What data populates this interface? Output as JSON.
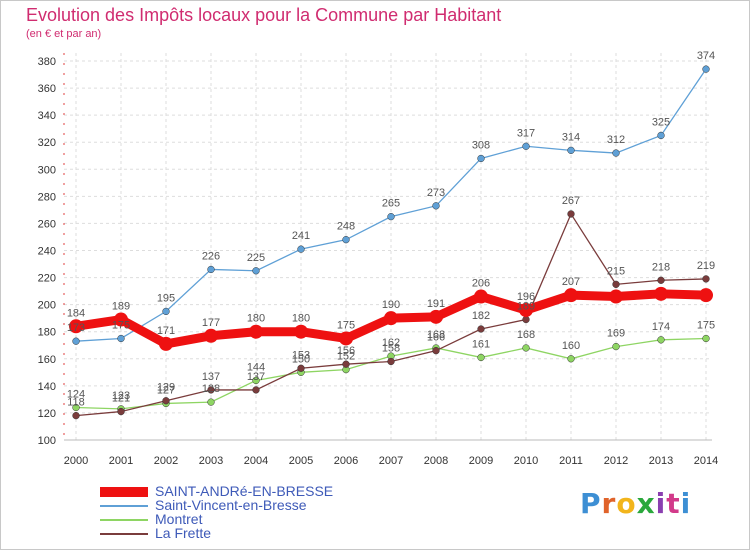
{
  "title": "Evolution des Impôts locaux pour la Commune par Habitant",
  "subtitle": "(en € et par an)",
  "logo_text": "Proxiti",
  "colors": {
    "title": "#d02c70",
    "legend_text": "#3e5ab8"
  },
  "chart_data": {
    "type": "line",
    "x": [
      "2000",
      "2001",
      "2002",
      "2003",
      "2004",
      "2005",
      "2006",
      "2007",
      "2008",
      "2009",
      "2010",
      "2011",
      "2012",
      "2013",
      "2014"
    ],
    "ylim": [
      100,
      380
    ],
    "yticks": [
      100,
      120,
      140,
      160,
      180,
      200,
      220,
      240,
      260,
      280,
      300,
      320,
      340,
      360,
      380
    ],
    "grid": true,
    "legend_position": "bottom-left",
    "series": [
      {
        "name": "SAINT-ANDRé-EN-BRESSE",
        "color": "#ee1111",
        "bold": true,
        "values": [
          184,
          189,
          171,
          177,
          180,
          180,
          175,
          190,
          191,
          206,
          196,
          207,
          206,
          208,
          207
        ],
        "labels": [
          "184",
          "189",
          "171",
          "177",
          "180",
          "180",
          "175",
          "190",
          "191",
          "206",
          "196",
          "207",
          "",
          "",
          ""
        ]
      },
      {
        "name": "Saint-Vincent-en-Bresse",
        "color": "#5fa0d6",
        "bold": false,
        "values": [
          173,
          175,
          195,
          226,
          225,
          241,
          248,
          265,
          273,
          308,
          317,
          314,
          312,
          325,
          374
        ],
        "labels": [
          "173",
          "175",
          "195",
          "226",
          "225",
          "241",
          "248",
          "265",
          "273",
          "308",
          "317",
          "314",
          "312",
          "325",
          "374"
        ]
      },
      {
        "name": "Montret",
        "color": "#8ed563",
        "bold": false,
        "values": [
          124,
          123,
          127,
          128,
          144,
          150,
          152,
          162,
          168,
          161,
          168,
          160,
          169,
          174,
          175
        ],
        "labels": [
          "124",
          "123",
          "127",
          "128",
          "144",
          "150",
          "152",
          "162",
          "168",
          "161",
          "168",
          "160",
          "169",
          "174",
          "175"
        ]
      },
      {
        "name": "La Frette",
        "color": "#7a3c3c",
        "bold": false,
        "values": [
          118,
          121,
          129,
          137,
          137,
          153,
          156,
          158,
          166,
          182,
          189,
          267,
          215,
          218,
          219
        ],
        "labels": [
          "118",
          "121",
          "129",
          "137",
          "137",
          "153",
          "156",
          "158",
          "166",
          "182",
          "189",
          "267",
          "215",
          "218",
          "219"
        ]
      }
    ]
  }
}
